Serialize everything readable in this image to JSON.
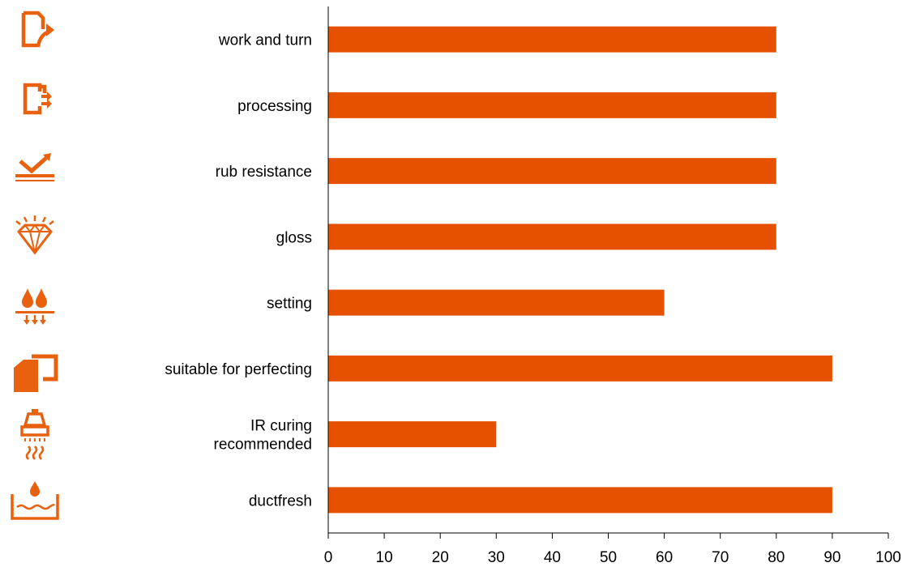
{
  "colors": {
    "bar": "#E65100",
    "icon": "#E8610F",
    "axis": "#000000",
    "text": "#000000"
  },
  "chart_data": {
    "type": "bar",
    "orientation": "horizontal",
    "categories": [
      "work and turn",
      "processing",
      "rub resistance",
      "gloss",
      "setting",
      "suitable for perfecting",
      "IR curing recommended",
      "ductfresh"
    ],
    "category_lines": [
      [
        "work and turn"
      ],
      [
        "processing"
      ],
      [
        "rub resistance"
      ],
      [
        "gloss"
      ],
      [
        "setting"
      ],
      [
        "suitable for perfecting"
      ],
      [
        "IR curing",
        "recommended"
      ],
      [
        "ductfresh"
      ]
    ],
    "values": [
      80,
      80,
      80,
      80,
      60,
      90,
      30,
      90
    ],
    "xlim": [
      0,
      100
    ],
    "xticks": [
      0,
      10,
      20,
      30,
      40,
      50,
      60,
      70,
      80,
      90,
      100
    ],
    "title": "",
    "xlabel": "",
    "ylabel": "",
    "grid": false,
    "legend": "none"
  },
  "icons": [
    "document-export-arrow-icon",
    "document-exit-arrows-icon",
    "checkmark-layers-icon",
    "sparkling-diamond-icon",
    "droplets-absorb-icon",
    "perfecting-sheets-icon",
    "ir-lamp-heat-icon",
    "ink-duct-tray-icon"
  ]
}
